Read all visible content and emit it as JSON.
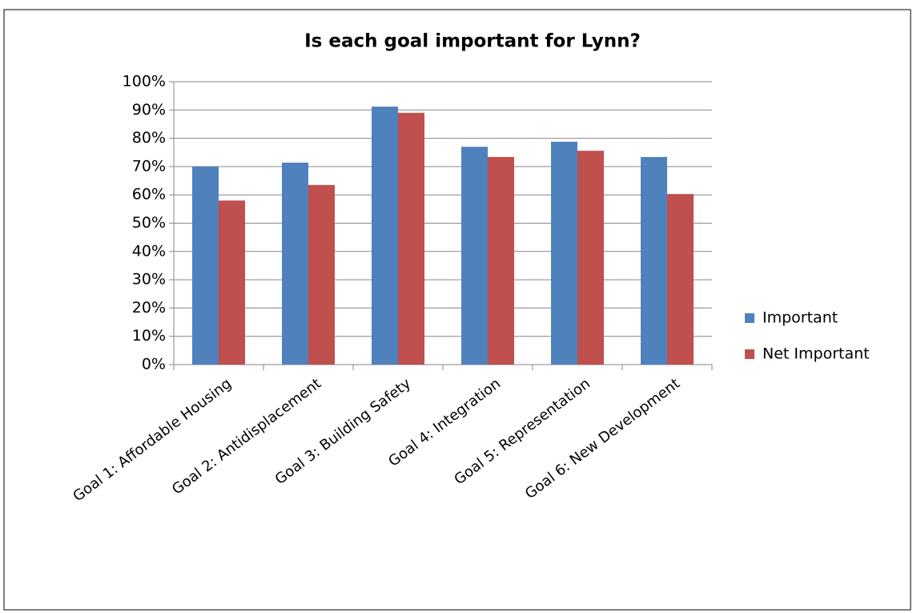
{
  "chart_data": {
    "type": "bar",
    "title": "Is each goal important for Lynn?",
    "categories": [
      "Goal 1: Affordable Housing",
      "Goal 2: Antidisplacement",
      "Goal 3: Building Safety",
      "Goal 4: Integration",
      "Goal 5: Representation",
      "Goal 6: New Development"
    ],
    "series": [
      {
        "name": "Important",
        "color": "#4f81bd",
        "values": [
          70,
          71.4,
          91.2,
          77,
          78.8,
          73.4
        ]
      },
      {
        "name": "Net Important",
        "color": "#c0504d",
        "values": [
          58,
          63.5,
          89,
          73.4,
          75.6,
          60.3
        ]
      }
    ],
    "ylim": [
      0,
      100
    ],
    "yticks": [
      {
        "value": 0,
        "label": "0%"
      },
      {
        "value": 10,
        "label": "10%"
      },
      {
        "value": 20,
        "label": "20%"
      },
      {
        "value": 30,
        "label": "30%"
      },
      {
        "value": 40,
        "label": "40%"
      },
      {
        "value": 50,
        "label": "50%"
      },
      {
        "value": 60,
        "label": "60%"
      },
      {
        "value": 70,
        "label": "70%"
      },
      {
        "value": 80,
        "label": "80%"
      },
      {
        "value": 90,
        "label": "90%"
      },
      {
        "value": 100,
        "label": "100%"
      }
    ],
    "grid": true,
    "legend": "right"
  }
}
